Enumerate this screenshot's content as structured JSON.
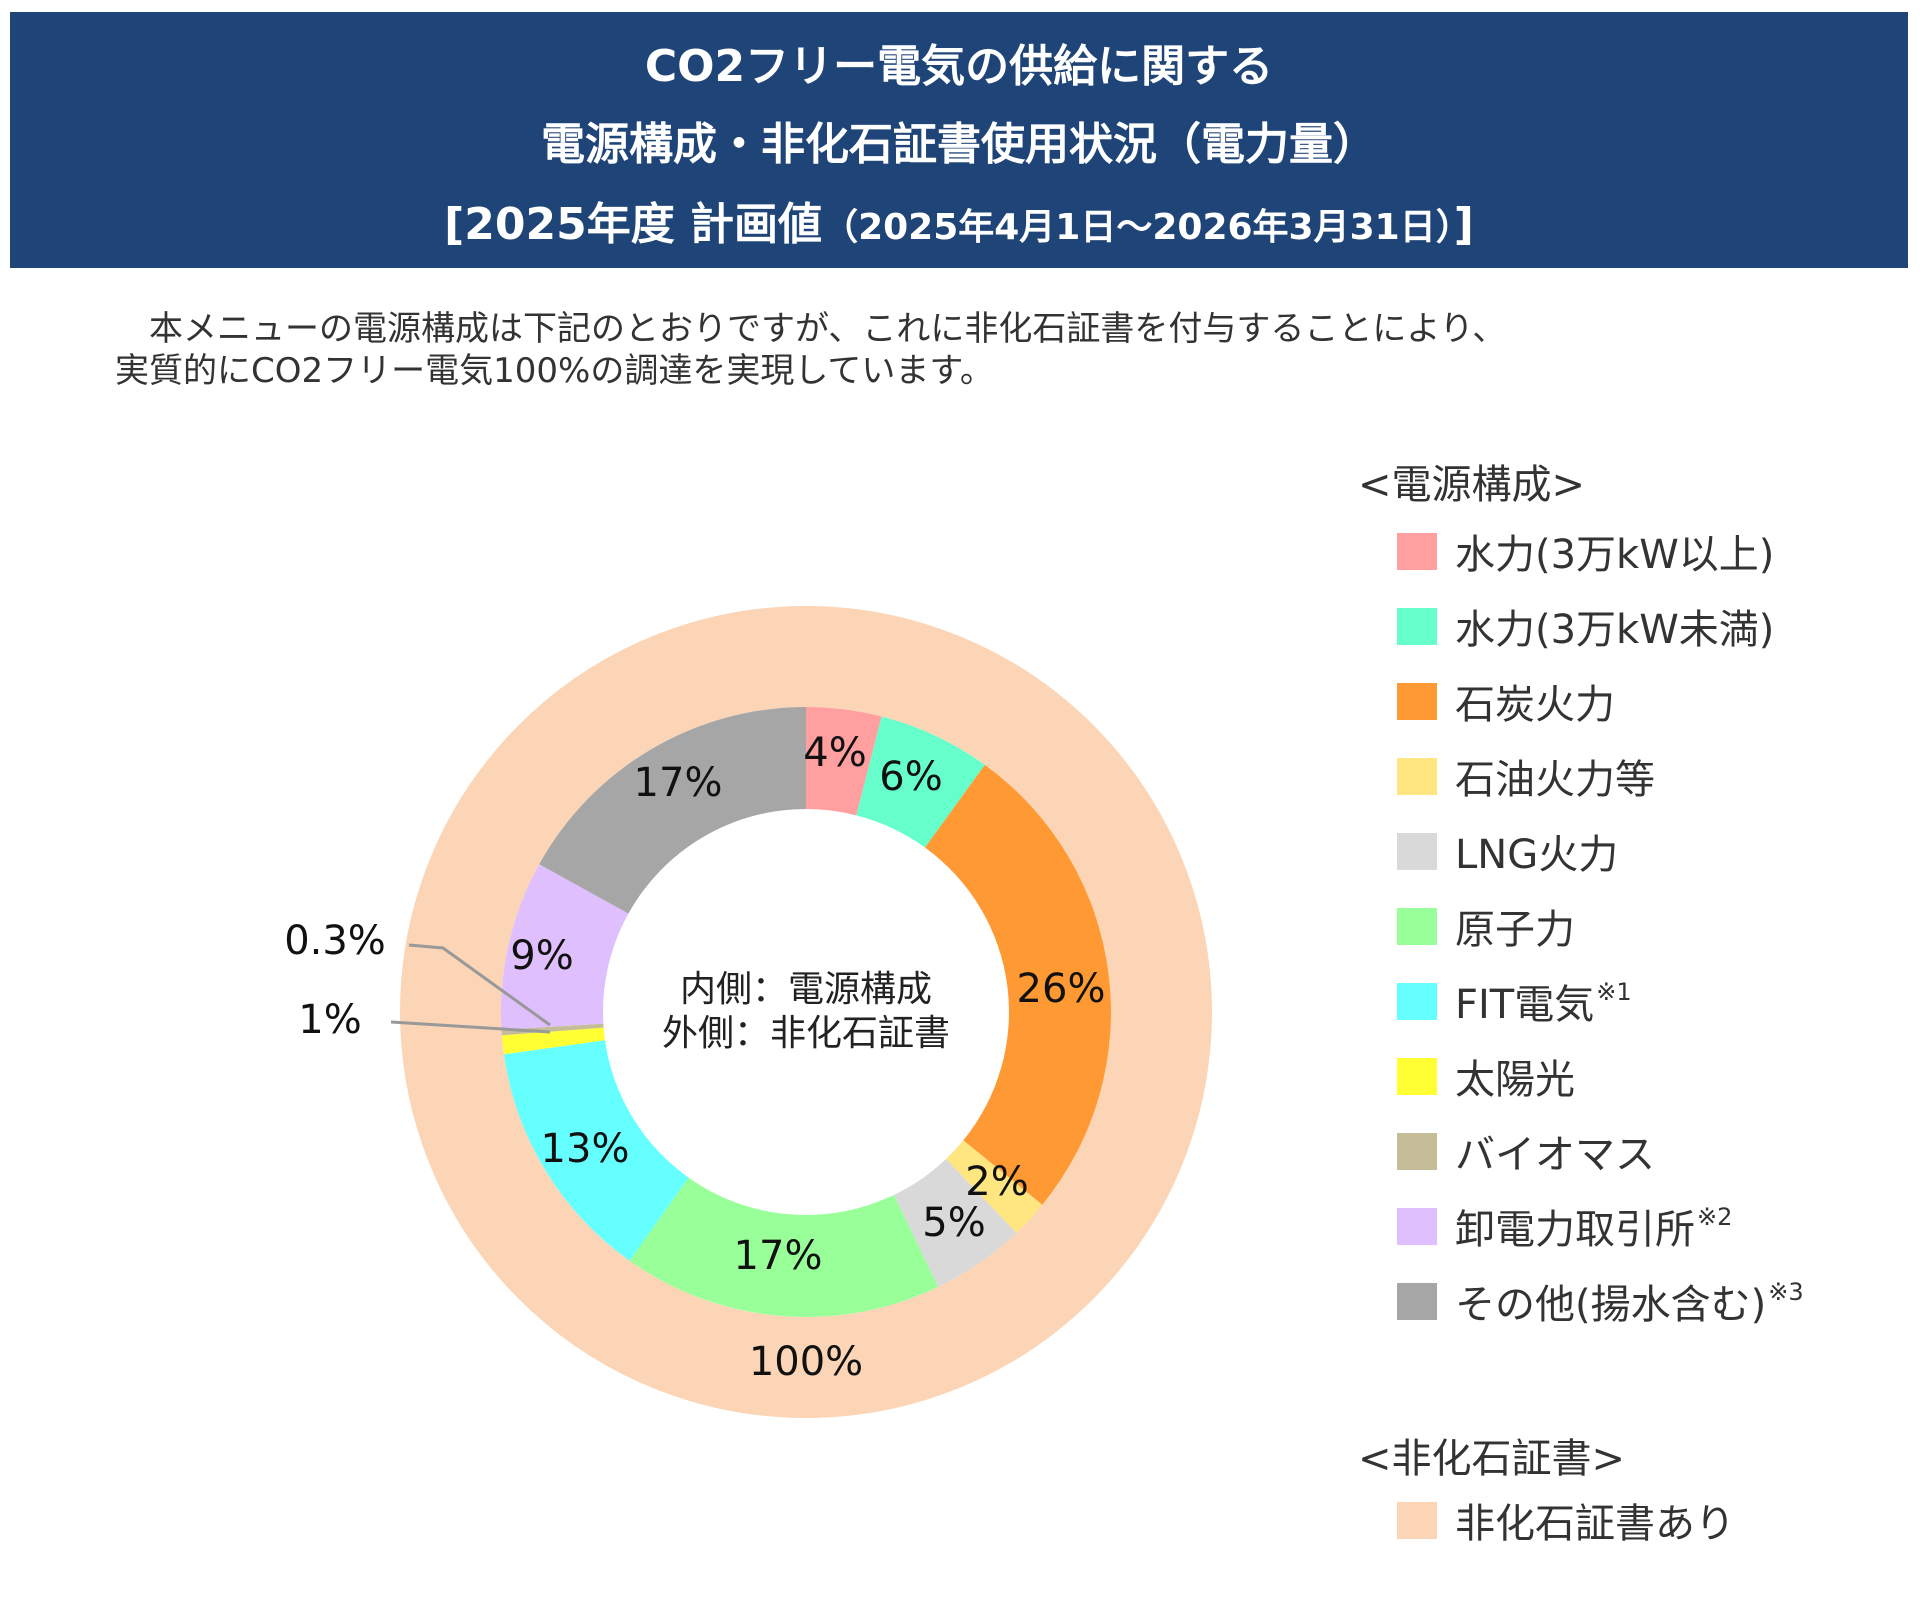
{
  "header": {
    "line1": "CO2フリー電気の供給に関する",
    "line2": "電源構成・非化石証書使用状況（電力量）",
    "line3_main": "[2025年度 計画値",
    "line3_period": "（2025年4月1日～2026年3月31日）",
    "line3_close": "]"
  },
  "intro": {
    "line1": "　本メニューの電源構成は下記のとおりですが、これに非化石証書を付与することにより、",
    "line2": "実質的にCO2フリー電気100%の調達を実現しています。"
  },
  "chart_data": {
    "type": "pie",
    "subtype": "double-donut",
    "center_text": [
      "内側：電源構成",
      "外側：非化石証書"
    ],
    "inner": {
      "legend_title": "<電源構成>",
      "series": [
        {
          "name": "水力(3万kW以上)",
          "value": 4,
          "label": "4%",
          "color": "#ff9f9f"
        },
        {
          "name": "水力(3万kW未満)",
          "value": 6,
          "label": "6%",
          "color": "#66ffcc"
        },
        {
          "name": "石炭火力",
          "value": 26,
          "label": "26%",
          "color": "#ff9933"
        },
        {
          "name": "石油火力等",
          "value": 2,
          "label": "2%",
          "color": "#ffe680"
        },
        {
          "name": "LNG火力",
          "value": 5,
          "label": "5%",
          "color": "#d9d9d9"
        },
        {
          "name": "原子力",
          "value": 17,
          "label": "17%",
          "color": "#99ff99"
        },
        {
          "name": "FIT電気",
          "note": "※1",
          "value": 13,
          "label": "13%",
          "color": "#66ffff"
        },
        {
          "name": "太陽光",
          "value": 1,
          "label": "1%",
          "color": "#ffff33"
        },
        {
          "name": "バイオマス",
          "value": 0.3,
          "label": "0.3%",
          "color": "#c4bd97"
        },
        {
          "name": "卸電力取引所",
          "note": "※2",
          "value": 9,
          "label": "9%",
          "color": "#e0bfff"
        },
        {
          "name": "その他(揚水含む)",
          "note": "※3",
          "value": 17,
          "label": "17%",
          "color": "#a6a6a6"
        }
      ]
    },
    "outer": {
      "legend_title": "<非化石証書>",
      "series": [
        {
          "name": "非化石証書あり",
          "value": 100,
          "label": "100%",
          "color": "#fbd5b5"
        }
      ]
    },
    "legend_placement": "right"
  }
}
